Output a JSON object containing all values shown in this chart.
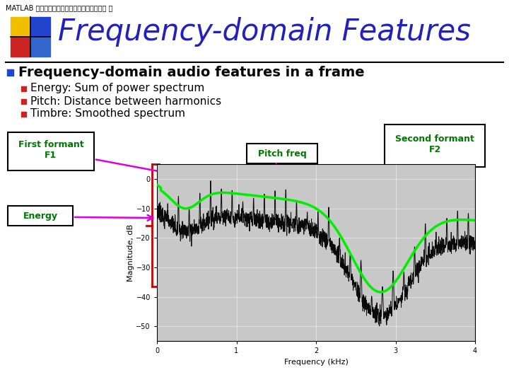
{
  "title": "Frequency-domain Features",
  "subtitle": "MATLAB 程式設計入門篇：音訊讀寫、錄製與播 放",
  "bullet_main": "Frequency-domain audio features in a frame",
  "bullets": [
    "Energy: Sum of power spectrum",
    "Pitch: Distance between harmonics",
    "Timbre: Smoothed spectrum"
  ],
  "label_first_formant": "First formant\nF1",
  "label_pitch_freq": "Pitch freq",
  "label_second_formant": "Second formant\nF2",
  "label_energy": "Energy",
  "bg_color": "#ffffff",
  "title_color": "#2222bb",
  "plot_bg": "#c8c8c8",
  "plot_outer_bg": "#b8b8b8",
  "green_line_color": "#00ee00",
  "red_bracket_color": "#cc0000",
  "arrow_color": "#dd00dd",
  "box_border_color": "#000000",
  "box_text_color": "#007700",
  "logo_colors": [
    "#f0c000",
    "#2244cc",
    "#cc2222",
    "#3366cc"
  ],
  "bullet_main_color": "#2244cc",
  "sub_bullet_color": "#cc2222"
}
